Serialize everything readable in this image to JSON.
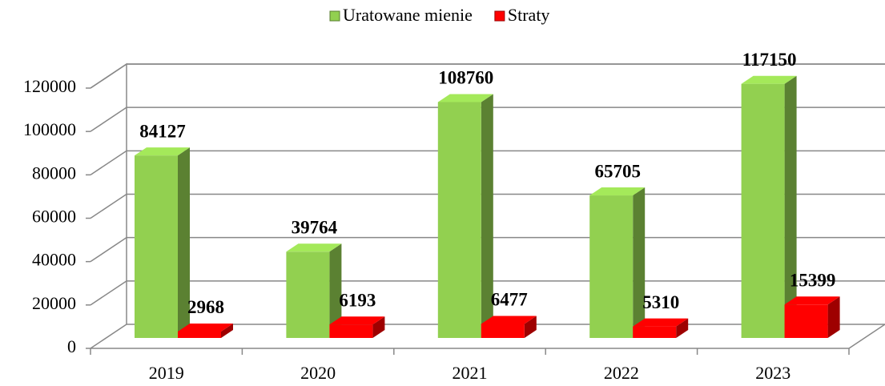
{
  "chart_data": {
    "type": "bar3d",
    "categories": [
      "2019",
      "2020",
      "2021",
      "2022",
      "2023"
    ],
    "series": [
      {
        "name": "Uratowane mienie",
        "color": "#92d050",
        "values": [
          84127,
          39764,
          108760,
          65705,
          117150
        ]
      },
      {
        "name": "Straty",
        "color": "#ff0000",
        "values": [
          2968,
          6193,
          6477,
          5310,
          15399
        ]
      }
    ],
    "ylim": [
      0,
      120000
    ],
    "yticks": [
      0,
      20000,
      40000,
      60000,
      80000,
      100000,
      120000
    ],
    "grid": true,
    "legend": "top"
  }
}
